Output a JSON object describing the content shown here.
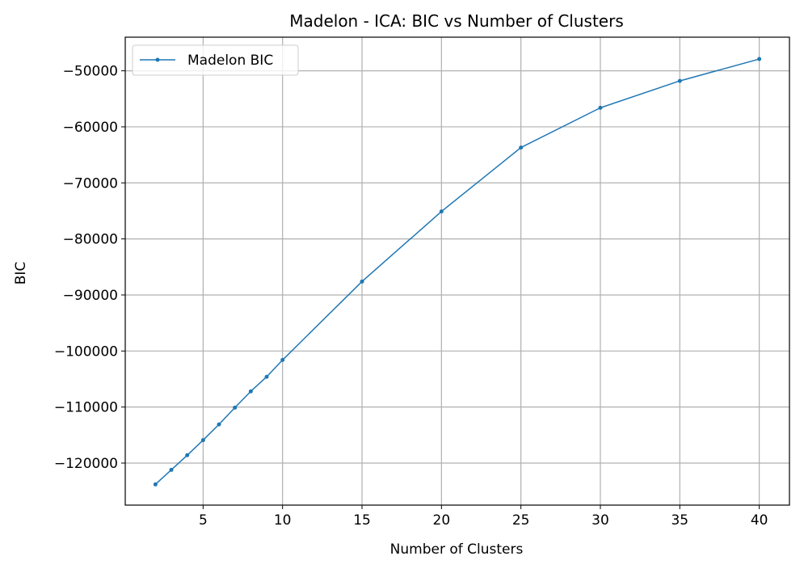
{
  "chart_data": {
    "type": "line",
    "title": "Madelon - ICA: BIC vs Number of Clusters",
    "xlabel": "Number of Clusters",
    "ylabel": "BIC",
    "xlim": [
      0.1,
      41.9
    ],
    "ylim": [
      -127500,
      -44000
    ],
    "xticks": [
      5,
      10,
      15,
      20,
      25,
      30,
      35,
      40
    ],
    "xtick_labels": [
      "5",
      "10",
      "15",
      "20",
      "25",
      "30",
      "35",
      "40"
    ],
    "yticks": [
      -120000,
      -110000,
      -100000,
      -90000,
      -80000,
      -70000,
      -60000,
      -50000
    ],
    "ytick_labels": [
      "−120000",
      "−110000",
      "−100000",
      "−90000",
      "−80000",
      "−70000",
      "−60000",
      "−50000"
    ],
    "grid": true,
    "legend_position": "top-left",
    "x": [
      2,
      3,
      4,
      5,
      6,
      7,
      8,
      9,
      10,
      15,
      20,
      25,
      30,
      35,
      40
    ],
    "series": [
      {
        "name": "Madelon BIC",
        "color": "#1f77b4",
        "values": [
          -123800,
          -121200,
          -118600,
          -115900,
          -113100,
          -110100,
          -107200,
          -104600,
          -101600,
          -87600,
          -75100,
          -63700,
          -56600,
          -51800,
          -47900
        ]
      }
    ]
  }
}
